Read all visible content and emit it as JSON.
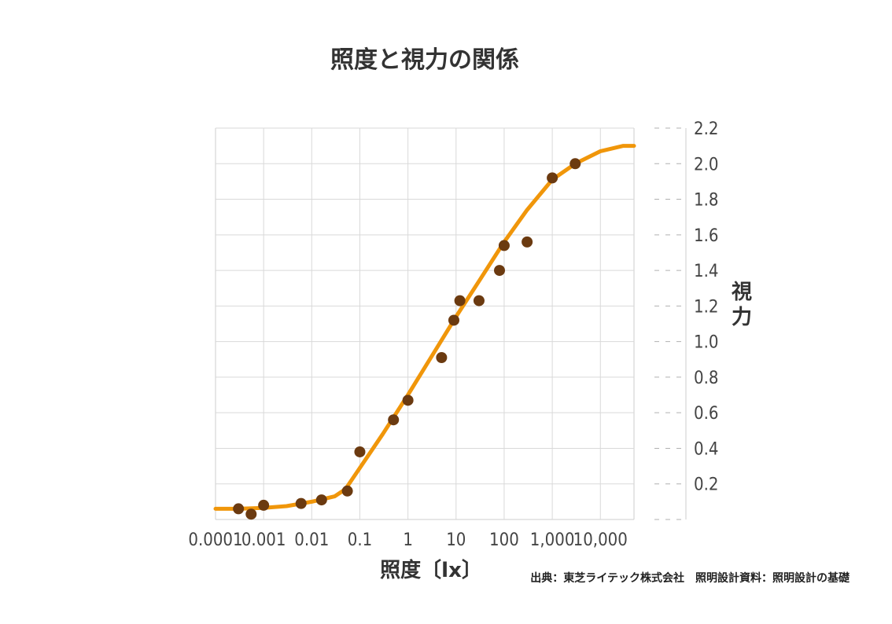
{
  "chart_data": {
    "type": "scatter",
    "title": "照度と視力の関係",
    "xlabel": "照度〔lx〕",
    "ylabel": "視力",
    "x_scale": "log",
    "xlim": [
      0.0001,
      50000
    ],
    "ylim": [
      0,
      2.2
    ],
    "x_ticks": [
      0.0001,
      0.001,
      0.01,
      0.1,
      1,
      10,
      100,
      1000,
      10000
    ],
    "x_tick_labels": [
      "0.0001",
      "0.001",
      "0.01",
      "0.1",
      "1",
      "10",
      "100",
      "1,000",
      "10,000"
    ],
    "y_ticks": [
      0.2,
      0.4,
      0.6,
      0.8,
      1.0,
      1.2,
      1.4,
      1.6,
      1.8,
      2.0,
      2.2
    ],
    "y_tick_labels": [
      "0.2",
      "0.4",
      "0.6",
      "0.8",
      "1.0",
      "1.2",
      "1.4",
      "1.6",
      "1.8",
      "2.0",
      "2.2"
    ],
    "y_axis_side": "right",
    "grid": true,
    "series": [
      {
        "mode": "points",
        "color": "#6b3a10",
        "points": [
          {
            "x": 0.0003,
            "y": 0.06
          },
          {
            "x": 0.00055,
            "y": 0.03
          },
          {
            "x": 0.001,
            "y": 0.08
          },
          {
            "x": 0.006,
            "y": 0.09
          },
          {
            "x": 0.016,
            "y": 0.11
          },
          {
            "x": 0.055,
            "y": 0.16
          },
          {
            "x": 0.1,
            "y": 0.38
          },
          {
            "x": 0.5,
            "y": 0.56
          },
          {
            "x": 1,
            "y": 0.67
          },
          {
            "x": 5,
            "y": 0.91
          },
          {
            "x": 9,
            "y": 1.12
          },
          {
            "x": 12,
            "y": 1.23
          },
          {
            "x": 30,
            "y": 1.23
          },
          {
            "x": 80,
            "y": 1.4
          },
          {
            "x": 100,
            "y": 1.54
          },
          {
            "x": 300,
            "y": 1.56
          },
          {
            "x": 1000,
            "y": 1.92
          },
          {
            "x": 3000,
            "y": 2.0
          }
        ]
      },
      {
        "mode": "line",
        "color": "#f0960a",
        "points": [
          {
            "x": 0.0001,
            "y": 0.06
          },
          {
            "x": 0.0003,
            "y": 0.06
          },
          {
            "x": 0.001,
            "y": 0.065
          },
          {
            "x": 0.003,
            "y": 0.075
          },
          {
            "x": 0.01,
            "y": 0.1
          },
          {
            "x": 0.03,
            "y": 0.13
          },
          {
            "x": 0.05,
            "y": 0.17
          },
          {
            "x": 0.1,
            "y": 0.29
          },
          {
            "x": 0.3,
            "y": 0.48
          },
          {
            "x": 1,
            "y": 0.7
          },
          {
            "x": 3,
            "y": 0.91
          },
          {
            "x": 10,
            "y": 1.14
          },
          {
            "x": 30,
            "y": 1.34
          },
          {
            "x": 100,
            "y": 1.56
          },
          {
            "x": 300,
            "y": 1.74
          },
          {
            "x": 1000,
            "y": 1.91
          },
          {
            "x": 3000,
            "y": 2.0
          },
          {
            "x": 10000,
            "y": 2.07
          },
          {
            "x": 30000,
            "y": 2.1
          },
          {
            "x": 50000,
            "y": 2.1
          }
        ]
      }
    ],
    "source": "出典：東芝ライテック株式会社　照明設計資料：照明設計の基礎"
  }
}
